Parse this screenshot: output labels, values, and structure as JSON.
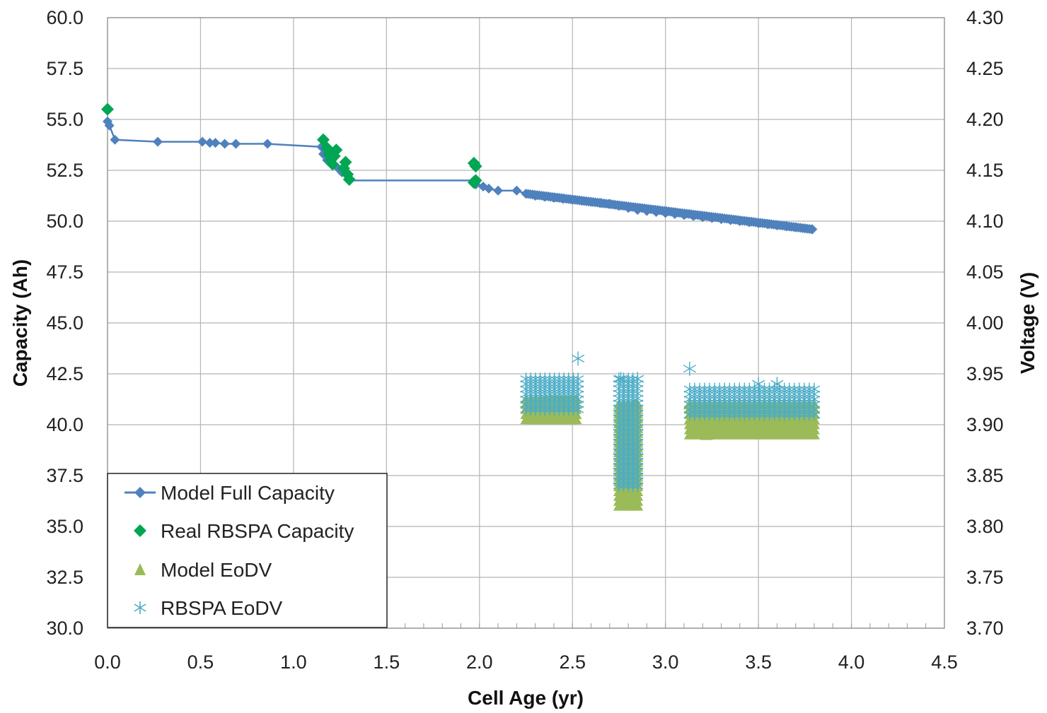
{
  "chart_data": {
    "type": "scatter",
    "xlabel": "Cell Age (yr)",
    "ylabel_left": "Capacity (Ah)",
    "ylabel_right": "Voltage (V)",
    "xlim": [
      0.0,
      4.5
    ],
    "ylim_left": [
      30.0,
      60.0
    ],
    "ylim_right": [
      3.7,
      4.3
    ],
    "x_ticks": [
      "0.0",
      "0.5",
      "1.0",
      "1.5",
      "2.0",
      "2.5",
      "3.0",
      "3.5",
      "4.0",
      "4.5"
    ],
    "y_left_ticks": [
      "30.0",
      "32.5",
      "35.0",
      "37.5",
      "40.0",
      "42.5",
      "45.0",
      "47.5",
      "50.0",
      "52.5",
      "55.0",
      "57.5",
      "60.0"
    ],
    "y_right_ticks": [
      "3.70",
      "3.75",
      "3.80",
      "3.85",
      "3.90",
      "3.95",
      "4.00",
      "4.05",
      "4.10",
      "4.15",
      "4.20",
      "4.25",
      "4.30"
    ],
    "grid": true,
    "legend_position": "bottom-left",
    "colors": {
      "model_full_capacity": "#4f81bd",
      "real_rbspa_capacity": "#00a651",
      "model_eodv": "#9bbb59",
      "rbspa_eodv": "#4bacc6"
    },
    "series": [
      {
        "name": "Model Full Capacity",
        "axis": "left",
        "marker": "diamond-line",
        "points": [
          [
            0.0,
            54.9
          ],
          [
            0.01,
            54.7
          ],
          [
            0.04,
            54.0
          ],
          [
            0.27,
            53.9
          ],
          [
            0.51,
            53.9
          ],
          [
            0.55,
            53.85
          ],
          [
            0.58,
            53.85
          ],
          [
            0.63,
            53.8
          ],
          [
            0.69,
            53.8
          ],
          [
            0.86,
            53.8
          ],
          [
            1.15,
            53.65
          ],
          [
            1.16,
            53.3
          ],
          [
            1.18,
            53.0
          ],
          [
            1.21,
            52.8
          ],
          [
            1.24,
            52.6
          ],
          [
            1.26,
            52.4
          ],
          [
            1.3,
            52.0
          ],
          [
            1.97,
            52.0
          ],
          [
            1.98,
            51.8
          ],
          [
            2.02,
            51.7
          ],
          [
            2.05,
            51.6
          ],
          [
            2.1,
            51.5
          ],
          [
            2.2,
            51.5
          ],
          [
            2.25,
            51.35
          ],
          [
            2.3,
            51.25
          ],
          [
            2.35,
            51.2
          ],
          [
            2.4,
            51.15
          ],
          [
            2.45,
            51.1
          ],
          [
            2.5,
            51.05
          ],
          [
            2.55,
            51.0
          ],
          [
            2.6,
            50.95
          ],
          [
            2.65,
            50.9
          ],
          [
            2.7,
            50.85
          ],
          [
            2.75,
            50.75
          ],
          [
            2.8,
            50.65
          ],
          [
            2.85,
            50.55
          ],
          [
            2.9,
            50.5
          ],
          [
            2.95,
            50.45
          ],
          [
            3.0,
            50.4
          ],
          [
            3.05,
            50.35
          ],
          [
            3.1,
            50.3
          ],
          [
            3.15,
            50.25
          ],
          [
            3.2,
            50.2
          ],
          [
            3.25,
            50.15
          ],
          [
            3.3,
            50.1
          ],
          [
            3.35,
            50.05
          ],
          [
            3.4,
            50.0
          ],
          [
            3.45,
            49.95
          ],
          [
            3.5,
            49.9
          ],
          [
            3.55,
            49.85
          ],
          [
            3.6,
            49.8
          ],
          [
            3.65,
            49.75
          ],
          [
            3.7,
            49.7
          ],
          [
            3.75,
            49.65
          ],
          [
            3.79,
            49.6
          ]
        ]
      },
      {
        "name": "Real RBSPA Capacity",
        "axis": "left",
        "marker": "diamond",
        "points": [
          [
            0.0,
            55.5
          ],
          [
            1.16,
            54.0
          ],
          [
            1.18,
            53.6
          ],
          [
            1.19,
            53.3
          ],
          [
            1.2,
            53.0
          ],
          [
            1.21,
            52.8
          ],
          [
            1.22,
            53.2
          ],
          [
            1.23,
            53.5
          ],
          [
            1.27,
            52.6
          ],
          [
            1.28,
            52.9
          ],
          [
            1.29,
            52.3
          ],
          [
            1.3,
            52.05
          ],
          [
            1.97,
            52.85
          ],
          [
            1.98,
            52.7
          ],
          [
            1.98,
            52.0
          ],
          [
            1.97,
            51.9
          ]
        ]
      },
      {
        "name": "Model EoDV",
        "axis": "right",
        "marker": "triangle",
        "segments": [
          {
            "x_from": 2.25,
            "x_to": 2.52,
            "v_bottom": 3.905,
            "v_top": 3.925
          },
          {
            "x_from": 2.75,
            "x_to": 2.85,
            "v_bottom": 3.82,
            "v_top": 3.92
          },
          {
            "x_from": 3.13,
            "x_to": 3.8,
            "v_bottom": 3.89,
            "v_top": 3.92
          }
        ],
        "points": [
          [
            3.45,
            3.895
          ],
          [
            3.22,
            3.89
          ],
          [
            2.8,
            3.826
          ],
          [
            2.84,
            3.92
          ],
          [
            3.13,
            3.92
          ]
        ]
      },
      {
        "name": "RBSPA EoDV",
        "axis": "right",
        "marker": "asterisk",
        "segments": [
          {
            "x_from": 2.25,
            "x_to": 2.53,
            "v_bottom": 3.915,
            "v_top": 3.945
          },
          {
            "x_from": 2.75,
            "x_to": 2.85,
            "v_bottom": 3.84,
            "v_top": 3.945
          },
          {
            "x_from": 3.13,
            "x_to": 3.8,
            "v_bottom": 3.91,
            "v_top": 3.935
          }
        ],
        "points": [
          [
            2.53,
            3.965
          ],
          [
            2.76,
            3.945
          ],
          [
            2.85,
            3.945
          ],
          [
            3.13,
            3.955
          ],
          [
            3.5,
            3.94
          ],
          [
            3.6,
            3.94
          ]
        ]
      }
    ]
  }
}
